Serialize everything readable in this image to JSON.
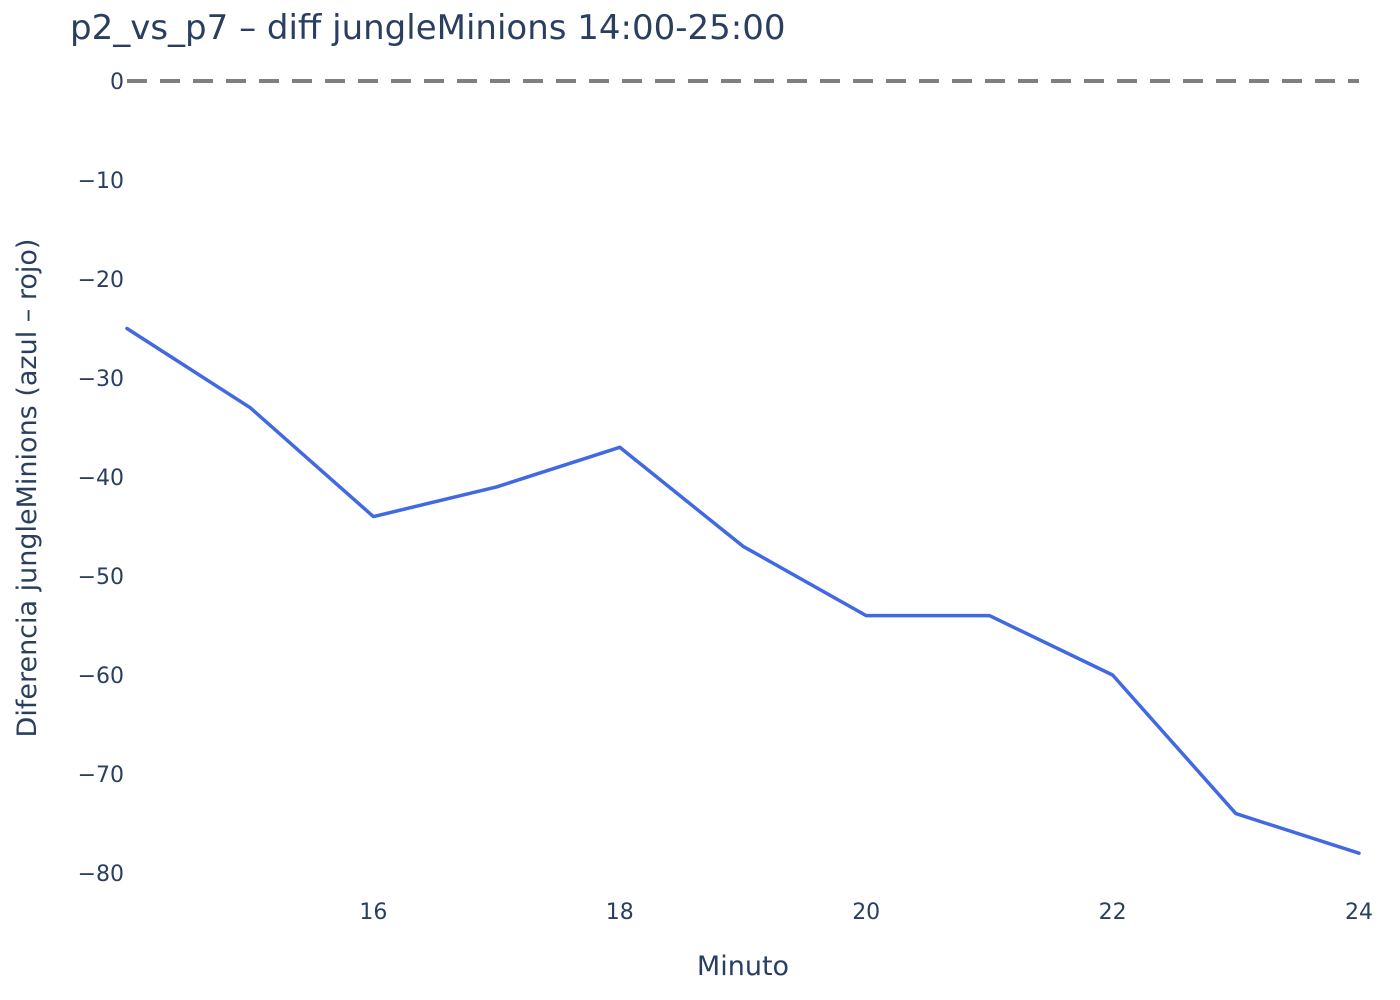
{
  "chart_data": {
    "type": "line",
    "title": "p2_vs_p7 – diff jungleMinions 14:00-25:00",
    "xlabel": "Minuto",
    "ylabel": "Diferencia jungleMinions (azul – rojo)",
    "xlim": [
      14,
      24
    ],
    "ylim": [
      -82,
      0
    ],
    "x_ticks": [
      16,
      18,
      20,
      22,
      24
    ],
    "x_tick_labels": [
      "16",
      "18",
      "20",
      "22",
      "24"
    ],
    "y_ticks": [
      0,
      -10,
      -20,
      -30,
      -40,
      -50,
      -60,
      -70,
      -80
    ],
    "y_tick_labels": [
      "0",
      "−10",
      "−20",
      "−30",
      "−40",
      "−50",
      "−60",
      "−70",
      "−80"
    ],
    "grid": false,
    "legend": "none",
    "reference_line": {
      "y": 0,
      "style": "dashed",
      "color": "#7f7f7f"
    },
    "x": [
      14,
      15,
      16,
      17,
      18,
      19,
      20,
      21,
      22,
      23,
      24
    ],
    "series": [
      {
        "color": "#4169e1",
        "values": [
          -25,
          -33,
          -44,
          -41,
          -37,
          -47,
          -54,
          -54,
          -60,
          -74,
          -78
        ]
      }
    ]
  }
}
